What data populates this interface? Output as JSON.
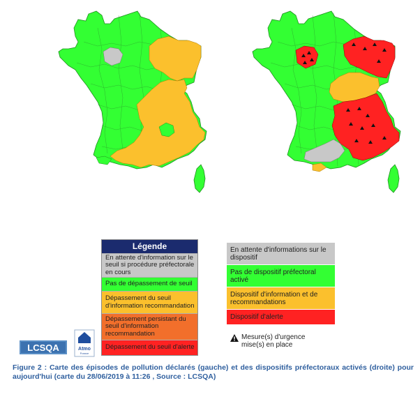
{
  "colors": {
    "green": "#33ff33",
    "yellow": "#fbc02d",
    "red": "#ff2222",
    "grey": "#c8c8c8",
    "orange": "#f26f2b",
    "legend_header": "#1b2b6e",
    "caption": "#2f5f9e"
  },
  "legend_left": {
    "header": "Légende",
    "items": [
      {
        "label": "En attente d'information sur le seuil si procédure préfectorale en cours",
        "color": "#c8c8c8"
      },
      {
        "label": "Pas de dépassement de seuil",
        "color": "#33ff33"
      },
      {
        "label": "Dépassement du seuil d'information recommandation",
        "color": "#fbc02d"
      },
      {
        "label": "Dépassement persistant du seuil d'information recommandation",
        "color": "#f26f2b"
      },
      {
        "label": "Dépassement du seuil d'alerte",
        "color": "#ff2222"
      }
    ]
  },
  "legend_right": {
    "items": [
      {
        "label": "En attente d'informations sur le dispositif",
        "color": "#c8c8c8"
      },
      {
        "label": "Pas de dispositif préfectoral activé",
        "color": "#33ff33"
      },
      {
        "label": "Dispositif d'information et de recommandations",
        "color": "#fbc02d"
      },
      {
        "label": "Dispositif d'alerte",
        "color": "#ff2222"
      }
    ],
    "measure": "Mesure(s) d'urgence mise(s) en place",
    "measure_icon": "warning-triangle-icon"
  },
  "logos": {
    "lcsqa": "LCSQA",
    "atmo": "Atmo",
    "atmo_sub": "France"
  },
  "caption": "Figure 2 : Carte des épisodes de pollution déclarés (gauche) et des dispositifs préfectoraux activés (droite) pour aujourd'hui (carte du 28/06/2019 à 11:26 , Source : LCSQA)",
  "maps": [
    {
      "name": "left-map",
      "description_regions": {
        "grey": [
          "Île-de-France"
        ],
        "yellow": [
          "Grand Est",
          "Bourgogne-Franche-Comté",
          "Auvergne-Rhône-Alpes",
          "Occitanie",
          "Provence-Alpes-Côte d'Azur"
        ]
      }
    },
    {
      "name": "right-map",
      "description_regions": {
        "red": [
          "Île-de-France",
          "Grand Est",
          "Auvergne-Rhône-Alpes",
          "Provence-Alpes-Côte d'Azur"
        ],
        "yellow": [
          "Bourgogne-Franche-Comté"
        ],
        "grey": [
          "Occitanie"
        ]
      }
    }
  ]
}
